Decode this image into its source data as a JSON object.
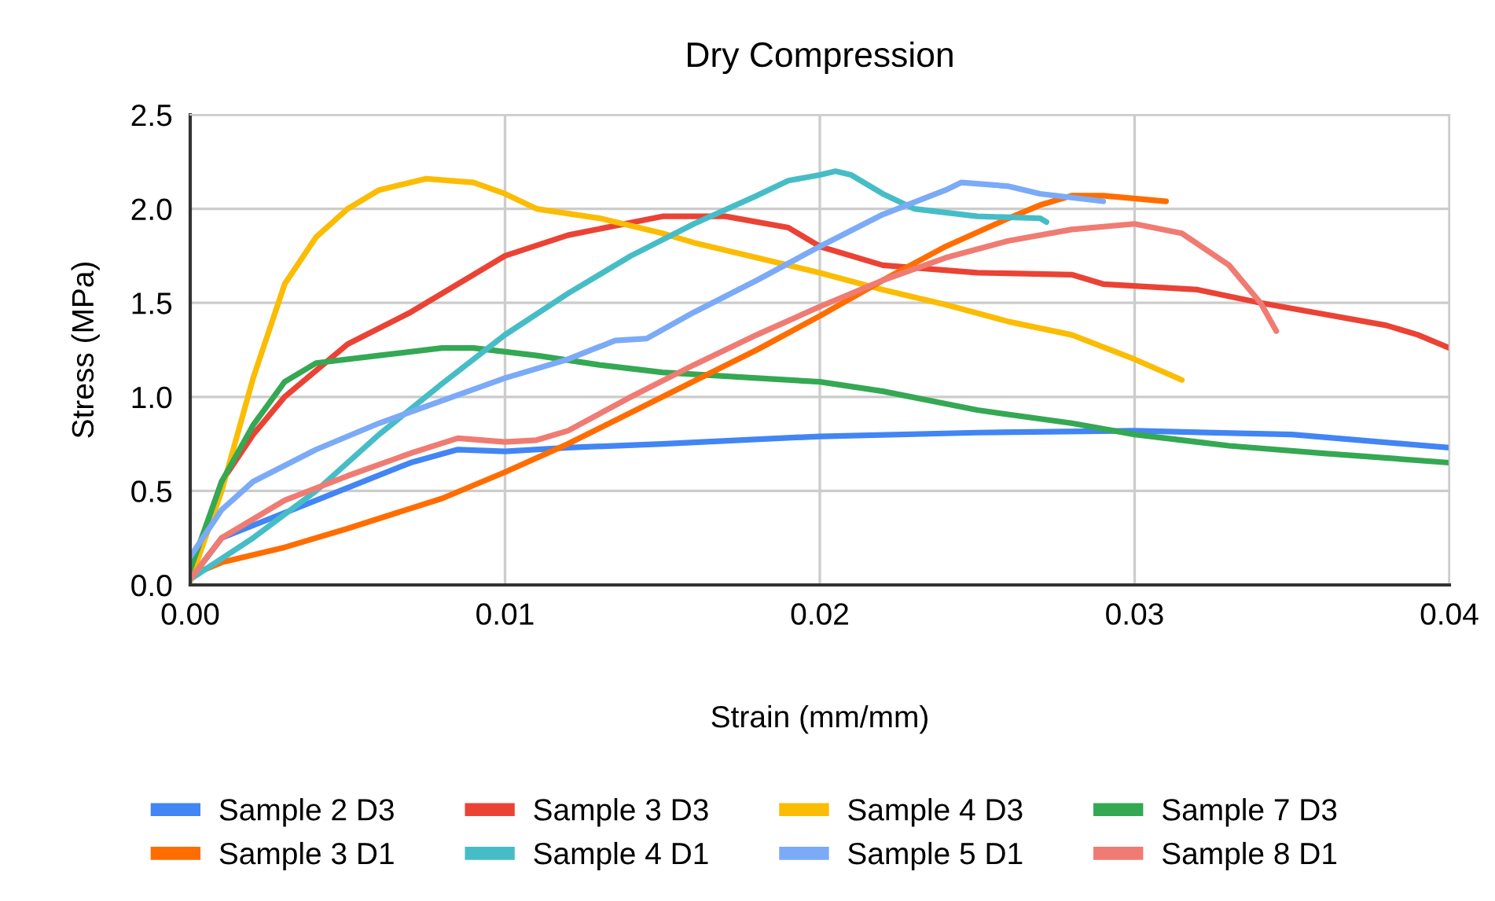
{
  "chart_data": {
    "type": "line",
    "title": "Dry Compression",
    "xlabel": "Strain (mm/mm)",
    "ylabel": "Stress (MPa)",
    "xlim": [
      0,
      0.04
    ],
    "ylim": [
      0,
      2.5
    ],
    "xticks": [
      {
        "value": 0,
        "label": "0.00"
      },
      {
        "value": 0.01,
        "label": "0.01"
      },
      {
        "value": 0.02,
        "label": "0.02"
      },
      {
        "value": 0.03,
        "label": "0.03"
      },
      {
        "value": 0.04,
        "label": "0.04"
      }
    ],
    "yticks": [
      {
        "value": 0,
        "label": "0.0"
      },
      {
        "value": 0.5,
        "label": "0.5"
      },
      {
        "value": 1,
        "label": "1.0"
      },
      {
        "value": 1.5,
        "label": "1.5"
      },
      {
        "value": 2,
        "label": "2.0"
      },
      {
        "value": 2.5,
        "label": "2.5"
      }
    ],
    "grid": true,
    "legend": "bottom",
    "marker": "none",
    "line_style": "solid",
    "series": [
      {
        "name": "Sample 2 D3",
        "color": "#4285f4",
        "x": [
          0,
          0.001,
          0.004,
          0.007,
          0.0085,
          0.01,
          0.012,
          0.015,
          0.02,
          0.025,
          0.03,
          0.035,
          0.04
        ],
        "values": [
          0.03,
          0.25,
          0.45,
          0.65,
          0.72,
          0.71,
          0.73,
          0.75,
          0.79,
          0.81,
          0.82,
          0.8,
          0.73
        ]
      },
      {
        "name": "Sample 3 D3",
        "color": "#ea4335",
        "x": [
          0,
          0.001,
          0.002,
          0.003,
          0.005,
          0.007,
          0.009,
          0.01,
          0.012,
          0.015,
          0.017,
          0.019,
          0.02,
          0.022,
          0.025,
          0.028,
          0.029,
          0.032,
          0.034,
          0.036,
          0.038,
          0.039,
          0.04
        ],
        "values": [
          0.05,
          0.55,
          0.8,
          1.0,
          1.28,
          1.45,
          1.65,
          1.75,
          1.86,
          1.96,
          1.96,
          1.9,
          1.8,
          1.7,
          1.66,
          1.65,
          1.6,
          1.57,
          1.5,
          1.44,
          1.38,
          1.33,
          1.26
        ]
      },
      {
        "name": "Sample 4 D3",
        "color": "#fbbc04",
        "x": [
          0,
          0.001,
          0.002,
          0.003,
          0.004,
          0.005,
          0.006,
          0.0075,
          0.009,
          0.01,
          0.011,
          0.013,
          0.015,
          0.016,
          0.018,
          0.02,
          0.022,
          0.024,
          0.026,
          0.028,
          0.03,
          0.0315
        ],
        "values": [
          0.02,
          0.5,
          1.1,
          1.6,
          1.85,
          2.0,
          2.1,
          2.16,
          2.14,
          2.08,
          2.0,
          1.95,
          1.87,
          1.82,
          1.74,
          1.66,
          1.57,
          1.49,
          1.4,
          1.33,
          1.2,
          1.09
        ]
      },
      {
        "name": "Sample 7 D3",
        "color": "#34a853",
        "x": [
          0,
          0.001,
          0.002,
          0.003,
          0.004,
          0.006,
          0.008,
          0.009,
          0.011,
          0.013,
          0.015,
          0.018,
          0.02,
          0.022,
          0.025,
          0.028,
          0.03,
          0.033,
          0.036,
          0.04
        ],
        "values": [
          0.08,
          0.55,
          0.85,
          1.08,
          1.18,
          1.22,
          1.26,
          1.26,
          1.22,
          1.17,
          1.13,
          1.1,
          1.08,
          1.03,
          0.93,
          0.86,
          0.8,
          0.74,
          0.7,
          0.65
        ]
      },
      {
        "name": "Sample 3 D1",
        "color": "#ff6d01",
        "x": [
          0,
          0.001,
          0.003,
          0.005,
          0.008,
          0.01,
          0.012,
          0.015,
          0.018,
          0.02,
          0.022,
          0.024,
          0.026,
          0.027,
          0.028,
          0.029,
          0.031
        ],
        "values": [
          0.05,
          0.12,
          0.2,
          0.3,
          0.46,
          0.6,
          0.75,
          1.0,
          1.25,
          1.43,
          1.62,
          1.8,
          1.95,
          2.02,
          2.07,
          2.07,
          2.04
        ]
      },
      {
        "name": "Sample 4 D1",
        "color": "#46bdc6",
        "x": [
          0,
          0.002,
          0.004,
          0.006,
          0.008,
          0.01,
          0.012,
          0.014,
          0.016,
          0.018,
          0.019,
          0.02,
          0.0205,
          0.021,
          0.022,
          0.023,
          0.025,
          0.027,
          0.0272
        ],
        "values": [
          0.03,
          0.25,
          0.5,
          0.8,
          1.07,
          1.33,
          1.55,
          1.75,
          1.92,
          2.07,
          2.15,
          2.18,
          2.2,
          2.18,
          2.08,
          2.0,
          1.96,
          1.95,
          1.93
        ]
      },
      {
        "name": "Sample 5 D1",
        "color": "#7baaf7",
        "x": [
          0,
          0.001,
          0.002,
          0.004,
          0.006,
          0.008,
          0.01,
          0.012,
          0.0135,
          0.0145,
          0.016,
          0.018,
          0.02,
          0.022,
          0.024,
          0.0245,
          0.026,
          0.027,
          0.029
        ],
        "values": [
          0.15,
          0.4,
          0.55,
          0.72,
          0.86,
          0.98,
          1.1,
          1.2,
          1.3,
          1.31,
          1.45,
          1.62,
          1.8,
          1.97,
          2.1,
          2.14,
          2.12,
          2.08,
          2.04
        ]
      },
      {
        "name": "Sample 8 D1",
        "color": "#f07b72",
        "x": [
          0,
          0.001,
          0.003,
          0.005,
          0.007,
          0.0085,
          0.01,
          0.011,
          0.012,
          0.014,
          0.016,
          0.018,
          0.02,
          0.022,
          0.024,
          0.026,
          0.028,
          0.03,
          0.0315,
          0.033,
          0.034,
          0.0345
        ],
        "values": [
          0.03,
          0.25,
          0.45,
          0.58,
          0.7,
          0.78,
          0.76,
          0.77,
          0.82,
          1.0,
          1.17,
          1.33,
          1.48,
          1.62,
          1.74,
          1.83,
          1.89,
          1.92,
          1.87,
          1.7,
          1.5,
          1.35
        ]
      }
    ]
  }
}
